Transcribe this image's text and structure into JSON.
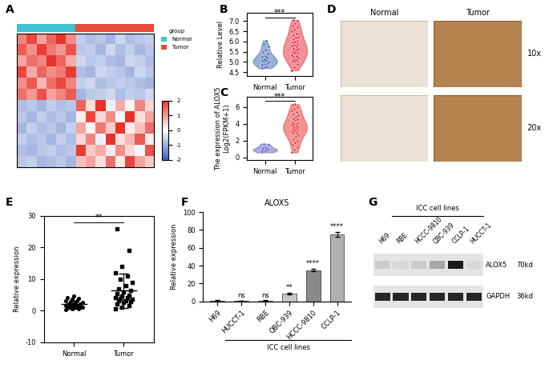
{
  "chart_data": [
    {
      "panel": "A",
      "type": "heatmap",
      "legend_title": "group",
      "groups": [
        {
          "name": "Normal",
          "color": "#3ec1d3",
          "count": 6
        },
        {
          "name": "Tumor",
          "color": "#e84a3c",
          "count": 8
        }
      ],
      "cells": [
        [
          1.2,
          1.8,
          0.9,
          1.5,
          2.0,
          1.1,
          -0.6,
          -0.8,
          -0.7,
          -0.9,
          -0.5,
          -0.8,
          -0.7,
          -0.6
        ],
        [
          1.6,
          1.1,
          1.9,
          1.3,
          1.0,
          1.7,
          -0.7,
          -0.6,
          -0.9,
          -0.5,
          -0.8,
          -0.6,
          -0.9,
          -0.7
        ],
        [
          0.9,
          1.4,
          1.2,
          2.0,
          1.5,
          0.8,
          -0.5,
          -0.7,
          -0.6,
          -0.8,
          -0.9,
          -0.5,
          -0.6,
          -0.8
        ],
        [
          1.8,
          0.8,
          1.5,
          1.1,
          1.3,
          1.9,
          -0.8,
          -0.9,
          -0.5,
          -0.6,
          -0.7,
          -0.9,
          -0.5,
          -0.7
        ],
        [
          1.1,
          1.6,
          0.7,
          1.4,
          1.8,
          1.2,
          -0.6,
          -0.5,
          -0.8,
          -0.7,
          -0.6,
          -0.7,
          -0.8,
          -0.9
        ],
        [
          1.4,
          1.0,
          1.7,
          0.9,
          1.2,
          1.6,
          -0.9,
          -0.7,
          -0.6,
          -0.5,
          -0.8,
          -0.6,
          -0.7,
          -0.5
        ],
        [
          -0.8,
          -0.7,
          -0.9,
          -0.6,
          -0.8,
          -0.7,
          1.5,
          0.3,
          2.0,
          -0.2,
          0.8,
          0.1,
          1.2,
          0.4
        ],
        [
          -0.7,
          -0.9,
          -0.6,
          -0.8,
          -0.7,
          -0.9,
          0.2,
          1.8,
          0.4,
          1.1,
          -0.1,
          2.0,
          0.3,
          0.9
        ],
        [
          -0.9,
          -0.6,
          -0.8,
          -0.7,
          -0.9,
          -0.6,
          0.9,
          0.1,
          1.3,
          0.5,
          2.0,
          0.2,
          0.6,
          1.4
        ],
        [
          -0.6,
          -0.8,
          -0.7,
          -0.9,
          -0.6,
          -0.8,
          0.4,
          1.2,
          -0.2,
          2.0,
          0.3,
          0.7,
          1.6,
          0.2
        ],
        [
          -0.8,
          -0.9,
          -0.7,
          -0.6,
          -0.8,
          -0.7,
          1.9,
          0.5,
          0.8,
          0.2,
          1.1,
          0.4,
          -0.1,
          1.7
        ],
        [
          -0.7,
          -0.6,
          -0.9,
          -0.8,
          -0.7,
          -0.9,
          0.6,
          0.9,
          0.3,
          1.4,
          0.2,
          1.8,
          0.9,
          0.5
        ]
      ],
      "colorbar_range": [
        -2,
        2
      ],
      "colorbar_ticks": [
        -2,
        -1,
        0,
        1,
        2
      ],
      "tick_labels": false
    },
    {
      "panel": "B",
      "type": "violin",
      "categories": [
        "Normal",
        "Tumor"
      ],
      "colors": [
        "#4a6fb5",
        "#e63946"
      ],
      "values": [
        [
          4.7,
          4.75,
          4.8,
          4.85,
          4.9,
          4.95,
          5.0,
          5.0,
          5.0,
          5.05,
          5.1,
          5.1,
          5.15,
          5.2,
          5.25,
          5.3,
          5.4,
          5.5,
          5.6,
          5.75,
          5.9,
          6.05
        ],
        [
          4.6,
          4.75,
          4.9,
          5.0,
          5.0,
          5.05,
          5.1,
          5.15,
          5.2,
          5.25,
          5.3,
          5.35,
          5.4,
          5.45,
          5.5,
          5.5,
          5.55,
          5.6,
          5.6,
          5.65,
          5.7,
          5.75,
          5.8,
          5.85,
          5.9,
          5.95,
          6.0,
          6.05,
          6.1,
          6.2,
          6.25,
          6.3,
          6.4,
          6.5,
          6.6,
          6.7,
          6.8,
          6.9,
          7.0,
          7.05
        ]
      ],
      "ylabel": "Relative Level",
      "ylim": [
        4.3,
        7.4
      ],
      "yticks": [
        4.5,
        5.0,
        5.5,
        6.0,
        6.5,
        7.0
      ],
      "annotation": "***"
    },
    {
      "panel": "C",
      "type": "violin",
      "categories": [
        "Normal",
        "Tumor"
      ],
      "colors": [
        "#6a6ac8",
        "#e8413f"
      ],
      "values": [
        [
          0.6,
          0.7,
          0.8,
          0.85,
          0.9,
          1.0,
          1.1,
          1.2,
          1.5,
          1.6
        ],
        [
          0.6,
          0.9,
          1.2,
          1.5,
          1.8,
          2.0,
          2.2,
          2.4,
          2.6,
          2.8,
          2.9,
          3.0,
          3.1,
          3.2,
          3.3,
          3.3,
          3.4,
          3.5,
          3.6,
          3.6,
          3.7,
          3.8,
          3.9,
          4.0,
          4.1,
          4.2,
          4.4,
          4.5,
          4.6,
          4.8,
          5.0,
          5.2,
          5.4,
          5.6,
          5.8,
          6.0,
          6.2,
          6.3
        ]
      ],
      "ylabel": "The expression of ALOX5\nLog2(FPKM+1)",
      "ylim": [
        -0.3,
        7.2
      ],
      "yticks": [
        0,
        2,
        4,
        6
      ],
      "annotation": "***"
    },
    {
      "panel": "E",
      "type": "scatter",
      "categories": [
        "Normal",
        "Tumor"
      ],
      "markers": [
        "circle",
        "square"
      ],
      "color": "#000000",
      "values": [
        [
          0.3,
          0.5,
          0.6,
          0.8,
          0.9,
          1.0,
          1.0,
          1.1,
          1.2,
          1.3,
          1.4,
          1.5,
          1.5,
          1.6,
          1.8,
          2.0,
          2.1,
          2.2,
          2.4,
          2.6,
          2.8,
          3.0,
          3.2,
          3.5,
          3.8,
          4.0,
          4.5
        ],
        [
          0.5,
          1.0,
          1.5,
          2.0,
          2.5,
          2.8,
          3.0,
          3.2,
          3.5,
          3.8,
          4.0,
          4.2,
          4.5,
          5.0,
          5.5,
          6.0,
          6.5,
          7.0,
          8.0,
          9.0,
          10.0,
          11.0,
          12.0,
          14.0,
          19.0,
          26.0
        ]
      ],
      "mean": [
        2.0,
        6.3
      ],
      "sd": [
        1.2,
        5.5
      ],
      "ylabel": "Relative expression",
      "ylim": [
        -10,
        30
      ],
      "yticks": [
        -10,
        0,
        10,
        20,
        30
      ],
      "annotation": "**"
    },
    {
      "panel": "F",
      "type": "bar",
      "title": "ALOX5",
      "categories": [
        "H69",
        "HUCCT-1",
        "RBE",
        "QBC-939",
        "HCCC-9810",
        "CCLP-1"
      ],
      "values": [
        1,
        0.6,
        0.9,
        8.5,
        35,
        75
      ],
      "errors": [
        0.2,
        0.1,
        0.2,
        1.0,
        1.5,
        2.5
      ],
      "colors": [
        "#444444",
        "#777777",
        "#999999",
        "#c8c8c8",
        "#8a8a8a",
        "#b0b0b0"
      ],
      "significance": [
        null,
        "ns",
        "ns",
        "**",
        "****",
        "****"
      ],
      "group_label": "ICC cell lines",
      "ylabel": "Relative expression",
      "ylim": [
        0,
        100
      ],
      "yticks": [
        0,
        20,
        40,
        60,
        80,
        100
      ]
    }
  ],
  "images": {
    "panel": "D",
    "columns": [
      "Normal",
      "Tumor"
    ],
    "rows": [
      "10x",
      "20x"
    ]
  },
  "blot": {
    "panel": "G",
    "group_label": "ICC cell lines",
    "lanes": [
      "H69",
      "RBE",
      "HCCC-9810",
      "QBC-939",
      "CCLP-1",
      "HUCCT-1"
    ],
    "bands": [
      {
        "name": "ALOX5",
        "size": "70kd",
        "intensity": [
          0.2,
          0.15,
          0.2,
          0.35,
          0.9,
          0.15
        ]
      },
      {
        "name": "GAPDH",
        "size": "36kd",
        "intensity": [
          0.85,
          0.85,
          0.85,
          0.85,
          0.85,
          0.85
        ]
      }
    ]
  }
}
